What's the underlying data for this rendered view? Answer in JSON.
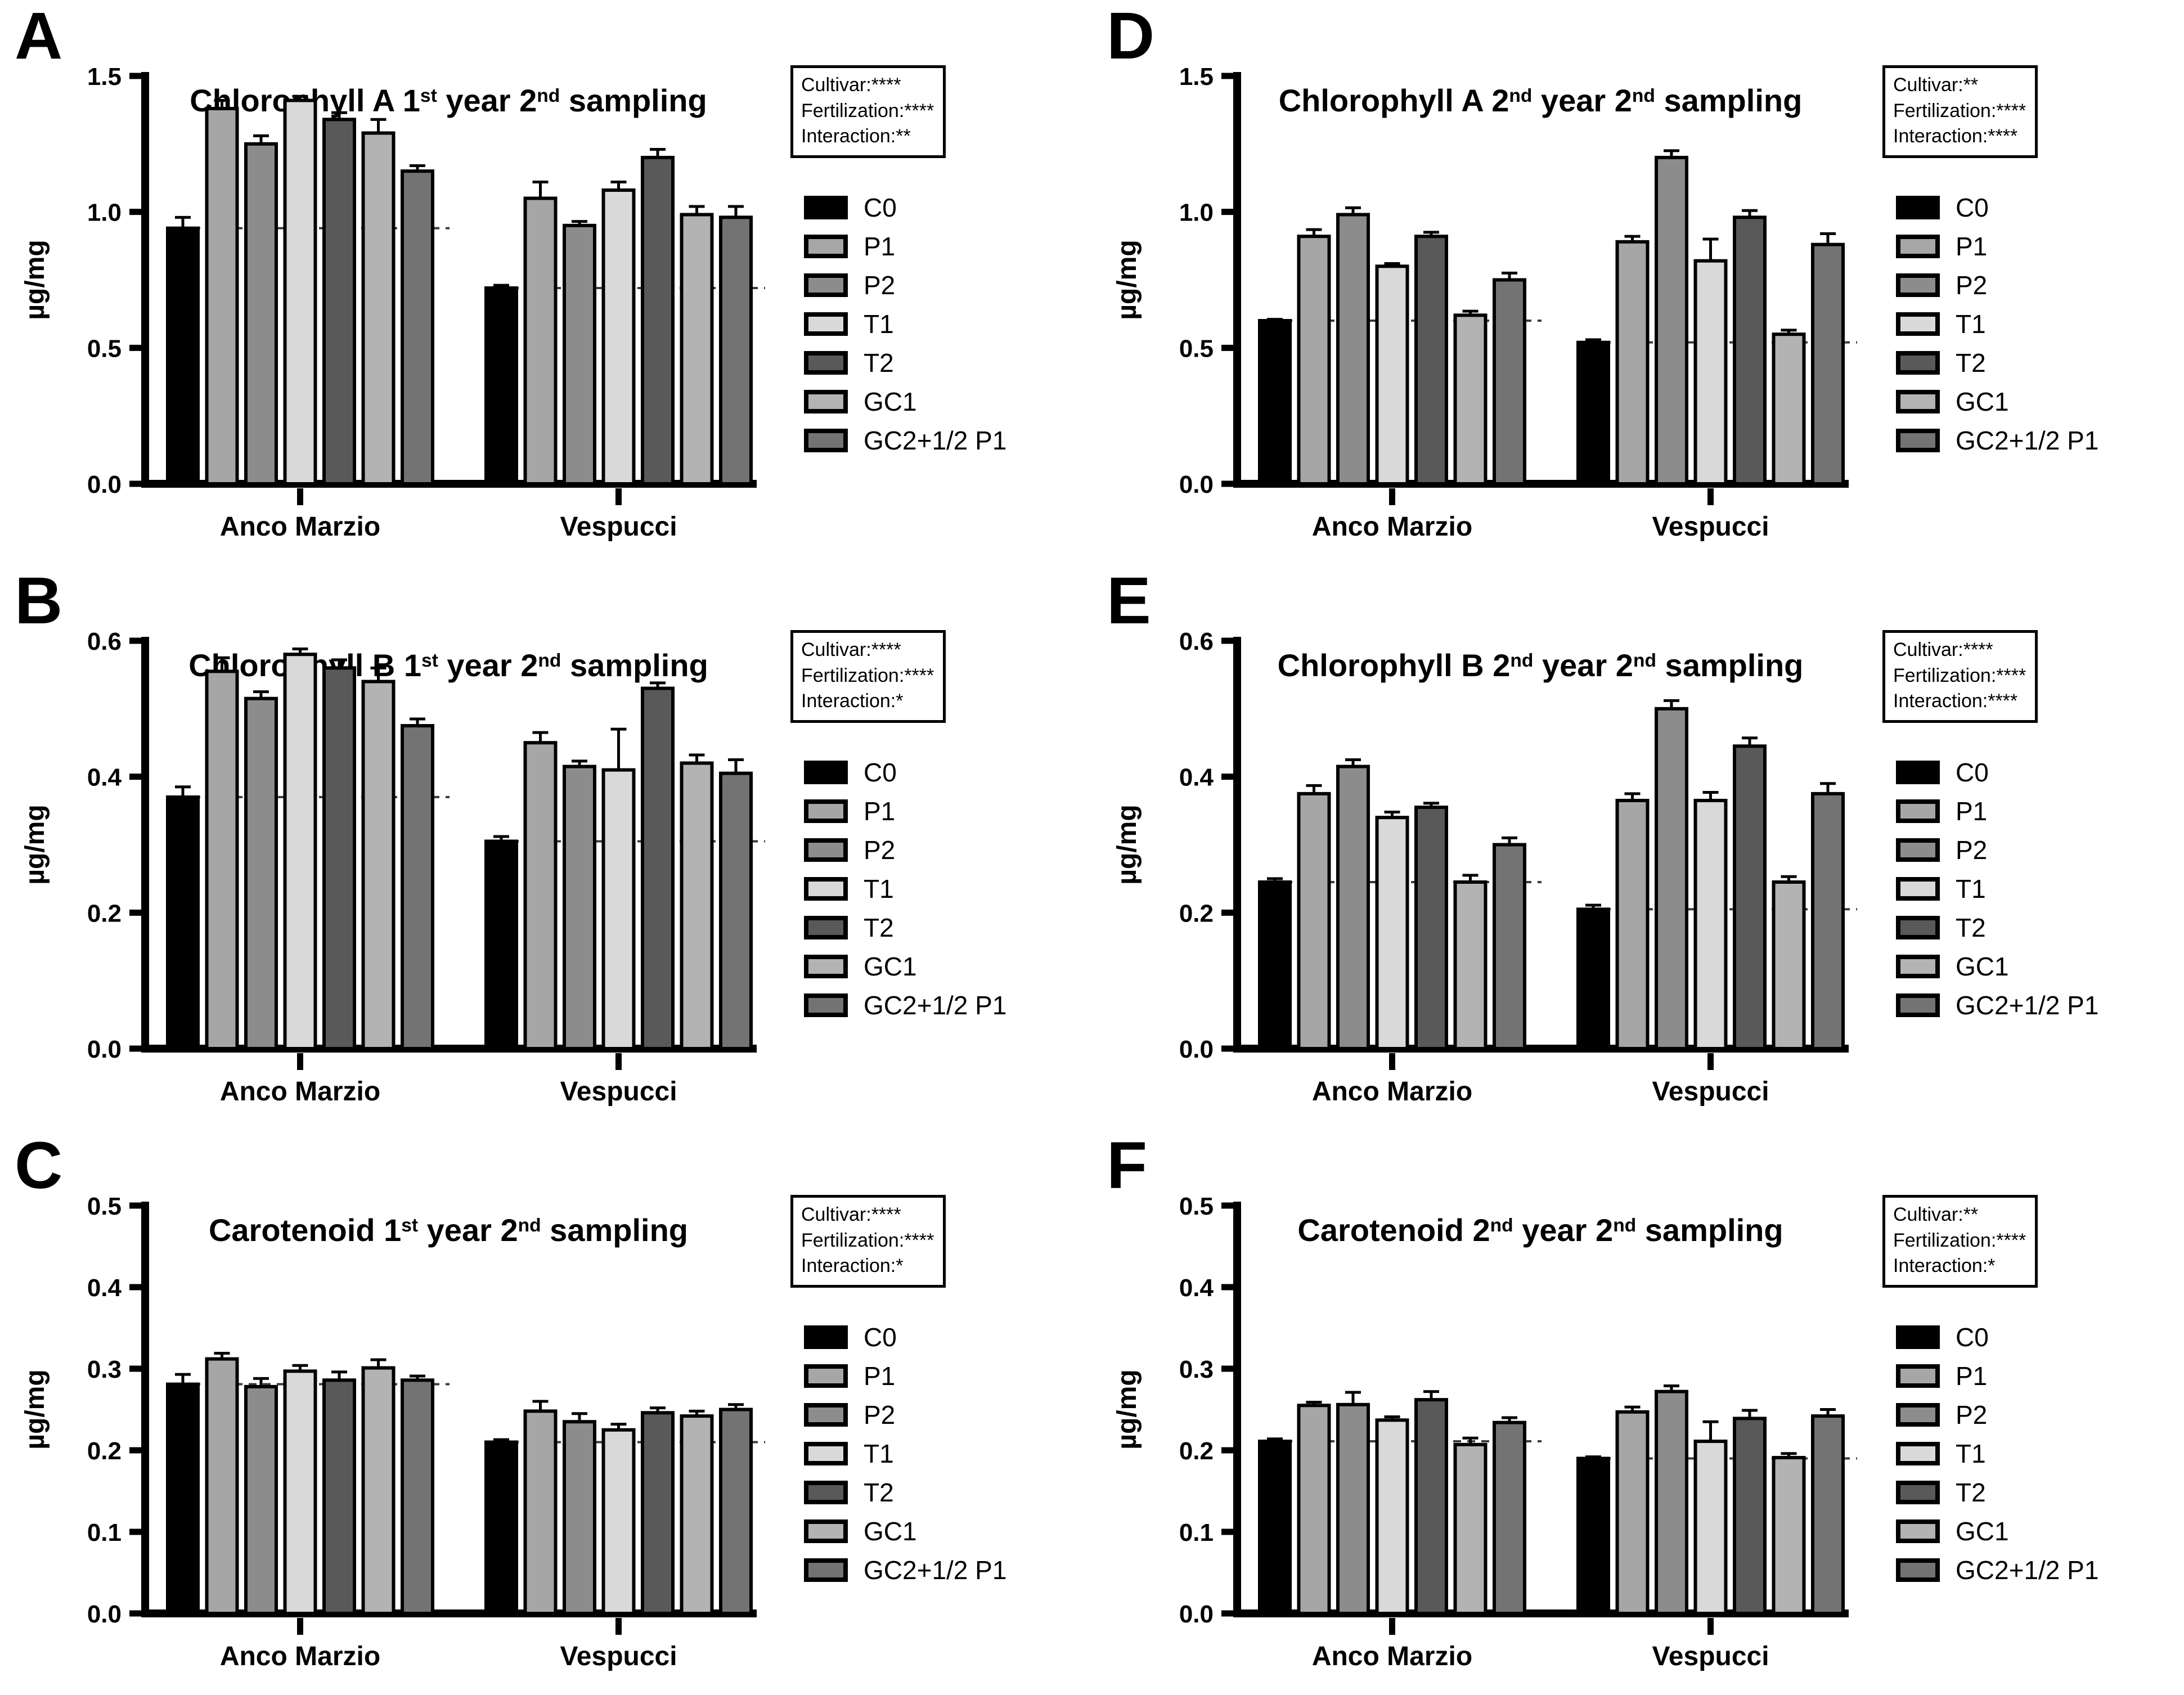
{
  "legend": {
    "items": [
      {
        "label": "C0",
        "color": "#000000"
      },
      {
        "label": "P1",
        "color": "#a6a6a6"
      },
      {
        "label": "P2",
        "color": "#8c8c8c"
      },
      {
        "label": "T1",
        "color": "#d9d9d9"
      },
      {
        "label": "T2",
        "color": "#595959"
      },
      {
        "label": "GC1",
        "color": "#b3b3b3"
      },
      {
        "label": "GC2+1/2 P1",
        "color": "#737373"
      }
    ]
  },
  "chart_data": [
    {
      "type": "bar",
      "panel": "A",
      "title": "Chlorophyll A 1st year 2nd sampling",
      "title_parts": {
        "pre": "Chlorophyll A 1",
        "sup1": "st",
        "mid": " year 2",
        "sup2": "nd",
        "post": " sampling"
      },
      "stats": {
        "cultivar": "Cultivar:****",
        "fertilization": "Fertilization:****",
        "interaction": "Interaction:**"
      },
      "ylabel": "µg/mg",
      "ylim": [
        0,
        1.5
      ],
      "yticks": [
        "0.0",
        "0.5",
        "1.0",
        "1.5"
      ],
      "categories": [
        "Anco Marzio",
        "Vespucci"
      ],
      "series": [
        {
          "name": "C0",
          "values": [
            0.94,
            0.72
          ],
          "errors": [
            0.04,
            0.01
          ]
        },
        {
          "name": "P1",
          "values": [
            1.38,
            1.05
          ],
          "errors": [
            0.03,
            0.06
          ]
        },
        {
          "name": "P2",
          "values": [
            1.25,
            0.95
          ],
          "errors": [
            0.03,
            0.015
          ]
        },
        {
          "name": "T1",
          "values": [
            1.41,
            1.08
          ],
          "errors": [
            0.015,
            0.03
          ]
        },
        {
          "name": "T2",
          "values": [
            1.34,
            1.2
          ],
          "errors": [
            0.025,
            0.03
          ]
        },
        {
          "name": "GC1",
          "values": [
            1.29,
            0.99
          ],
          "errors": [
            0.05,
            0.03
          ]
        },
        {
          "name": "GC2+1/2 P1",
          "values": [
            1.15,
            0.98
          ],
          "errors": [
            0.02,
            0.04
          ]
        }
      ],
      "dashed_reference": "C0",
      "legend_position": "right",
      "grid": false
    },
    {
      "type": "bar",
      "panel": "B",
      "title": "Chlorophyll B 1st year 2nd sampling",
      "title_parts": {
        "pre": "Chlorophyll B 1",
        "sup1": "st",
        "mid": " year 2",
        "sup2": "nd",
        "post": " sampling"
      },
      "stats": {
        "cultivar": "Cultivar:****",
        "fertilization": "Fertilization:****",
        "interaction": "Interaction:*"
      },
      "ylabel": "µg/mg",
      "ylim": [
        0,
        0.6
      ],
      "yticks": [
        "0.0",
        "0.2",
        "0.4",
        "0.6"
      ],
      "categories": [
        "Anco Marzio",
        "Vespucci"
      ],
      "series": [
        {
          "name": "C0",
          "values": [
            0.37,
            0.305
          ],
          "errors": [
            0.015,
            0.007
          ]
        },
        {
          "name": "P1",
          "values": [
            0.555,
            0.45
          ],
          "errors": [
            0.02,
            0.015
          ]
        },
        {
          "name": "P2",
          "values": [
            0.515,
            0.415
          ],
          "errors": [
            0.01,
            0.008
          ]
        },
        {
          "name": "T1",
          "values": [
            0.58,
            0.41
          ],
          "errors": [
            0.008,
            0.06
          ]
        },
        {
          "name": "T2",
          "values": [
            0.56,
            0.53
          ],
          "errors": [
            0.012,
            0.008
          ]
        },
        {
          "name": "GC1",
          "values": [
            0.54,
            0.42
          ],
          "errors": [
            0.02,
            0.012
          ]
        },
        {
          "name": "GC2+1/2 P1",
          "values": [
            0.475,
            0.405
          ],
          "errors": [
            0.01,
            0.02
          ]
        }
      ],
      "dashed_reference": "C0",
      "legend_position": "right",
      "grid": false
    },
    {
      "type": "bar",
      "panel": "C",
      "title": "Carotenoid 1st year 2nd sampling",
      "title_parts": {
        "pre": "Carotenoid 1",
        "sup1": "st",
        "mid": " year 2",
        "sup2": "nd",
        "post": " sampling"
      },
      "stats": {
        "cultivar": "Cultivar:****",
        "fertilization": "Fertilization:****",
        "interaction": "Interaction:*"
      },
      "ylabel": "µg/mg",
      "ylim": [
        0,
        0.5
      ],
      "yticks": [
        "0.0",
        "0.1",
        "0.2",
        "0.3",
        "0.4",
        "0.5"
      ],
      "categories": [
        "Anco Marzio",
        "Vespucci"
      ],
      "series": [
        {
          "name": "C0",
          "values": [
            0.281,
            0.21
          ],
          "errors": [
            0.012,
            0.003
          ]
        },
        {
          "name": "P1",
          "values": [
            0.312,
            0.248
          ],
          "errors": [
            0.007,
            0.012
          ]
        },
        {
          "name": "P2",
          "values": [
            0.278,
            0.235
          ],
          "errors": [
            0.01,
            0.01
          ]
        },
        {
          "name": "T1",
          "values": [
            0.297,
            0.225
          ],
          "errors": [
            0.007,
            0.007
          ]
        },
        {
          "name": "T2",
          "values": [
            0.286,
            0.246
          ],
          "errors": [
            0.01,
            0.006
          ]
        },
        {
          "name": "GC1",
          "values": [
            0.301,
            0.242
          ],
          "errors": [
            0.01,
            0.006
          ]
        },
        {
          "name": "GC2+1/2 P1",
          "values": [
            0.286,
            0.25
          ],
          "errors": [
            0.005,
            0.006
          ]
        }
      ],
      "dashed_reference": "C0",
      "legend_position": "right",
      "grid": false
    },
    {
      "type": "bar",
      "panel": "D",
      "title": "Chlorophyll A 2nd year 2nd sampling",
      "title_parts": {
        "pre": "Chlorophyll A 2",
        "sup1": "nd",
        "mid": " year 2",
        "sup2": "nd",
        "post": " sampling"
      },
      "stats": {
        "cultivar": "Cultivar:**",
        "fertilization": "Fertilization:****",
        "interaction": "Interaction:****"
      },
      "ylabel": "µg/mg",
      "ylim": [
        0,
        1.5
      ],
      "yticks": [
        "0.0",
        "0.5",
        "1.0",
        "1.5"
      ],
      "categories": [
        "Anco Marzio",
        "Vespucci"
      ],
      "series": [
        {
          "name": "C0",
          "values": [
            0.6,
            0.52
          ],
          "errors": [
            0.005,
            0.01
          ]
        },
        {
          "name": "P1",
          "values": [
            0.91,
            0.89
          ],
          "errors": [
            0.025,
            0.02
          ]
        },
        {
          "name": "P2",
          "values": [
            0.99,
            1.2
          ],
          "errors": [
            0.025,
            0.025
          ]
        },
        {
          "name": "T1",
          "values": [
            0.8,
            0.82
          ],
          "errors": [
            0.01,
            0.08
          ]
        },
        {
          "name": "T2",
          "values": [
            0.91,
            0.98
          ],
          "errors": [
            0.015,
            0.025
          ]
        },
        {
          "name": "GC1",
          "values": [
            0.62,
            0.55
          ],
          "errors": [
            0.015,
            0.015
          ]
        },
        {
          "name": "GC2+1/2 P1",
          "values": [
            0.75,
            0.88
          ],
          "errors": [
            0.025,
            0.04
          ]
        }
      ],
      "dashed_reference": "C0",
      "legend_position": "right",
      "grid": false
    },
    {
      "type": "bar",
      "panel": "E",
      "title": "Chlorophyll B 2nd year 2nd sampling",
      "title_parts": {
        "pre": "Chlorophyll B 2",
        "sup1": "nd",
        "mid": " year 2",
        "sup2": "nd",
        "post": " sampling"
      },
      "stats": {
        "cultivar": "Cultivar:****",
        "fertilization": "Fertilization:****",
        "interaction": "Interaction:****"
      },
      "ylabel": "µg/mg",
      "ylim": [
        0,
        0.6
      ],
      "yticks": [
        "0.0",
        "0.2",
        "0.4",
        "0.6"
      ],
      "categories": [
        "Anco Marzio",
        "Vespucci"
      ],
      "series": [
        {
          "name": "C0",
          "values": [
            0.245,
            0.205
          ],
          "errors": [
            0.005,
            0.006
          ]
        },
        {
          "name": "P1",
          "values": [
            0.375,
            0.365
          ],
          "errors": [
            0.012,
            0.01
          ]
        },
        {
          "name": "P2",
          "values": [
            0.415,
            0.5
          ],
          "errors": [
            0.01,
            0.012
          ]
        },
        {
          "name": "T1",
          "values": [
            0.34,
            0.365
          ],
          "errors": [
            0.008,
            0.012
          ]
        },
        {
          "name": "T2",
          "values": [
            0.355,
            0.445
          ],
          "errors": [
            0.006,
            0.012
          ]
        },
        {
          "name": "GC1",
          "values": [
            0.245,
            0.245
          ],
          "errors": [
            0.01,
            0.008
          ]
        },
        {
          "name": "GC2+1/2 P1",
          "values": [
            0.3,
            0.375
          ],
          "errors": [
            0.01,
            0.015
          ]
        }
      ],
      "dashed_reference": "C0",
      "legend_position": "right",
      "grid": false
    },
    {
      "type": "bar",
      "panel": "F",
      "title": "Carotenoid 2nd year 2nd sampling",
      "title_parts": {
        "pre": "Carotenoid 2",
        "sup1": "nd",
        "mid": " year 2",
        "sup2": "nd",
        "post": " sampling"
      },
      "stats": {
        "cultivar": "Cultivar:**",
        "fertilization": "Fertilization:****",
        "interaction": "Interaction:*"
      },
      "ylabel": "µg/mg",
      "ylim": [
        0,
        0.5
      ],
      "yticks": [
        "0.0",
        "0.1",
        "0.2",
        "0.3",
        "0.4",
        "0.5"
      ],
      "categories": [
        "Anco Marzio",
        "Vespucci"
      ],
      "series": [
        {
          "name": "C0",
          "values": [
            0.211,
            0.19
          ],
          "errors": [
            0.003,
            0.002
          ]
        },
        {
          "name": "P1",
          "values": [
            0.255,
            0.247
          ],
          "errors": [
            0.004,
            0.006
          ]
        },
        {
          "name": "P2",
          "values": [
            0.256,
            0.272
          ],
          "errors": [
            0.015,
            0.007
          ]
        },
        {
          "name": "T1",
          "values": [
            0.237,
            0.211
          ],
          "errors": [
            0.004,
            0.024
          ]
        },
        {
          "name": "T2",
          "values": [
            0.262,
            0.239
          ],
          "errors": [
            0.01,
            0.01
          ]
        },
        {
          "name": "GC1",
          "values": [
            0.207,
            0.191
          ],
          "errors": [
            0.008,
            0.005
          ]
        },
        {
          "name": "GC2+1/2 P1",
          "values": [
            0.234,
            0.242
          ],
          "errors": [
            0.006,
            0.008
          ]
        }
      ],
      "dashed_reference": "C0",
      "legend_position": "right",
      "grid": false
    }
  ]
}
